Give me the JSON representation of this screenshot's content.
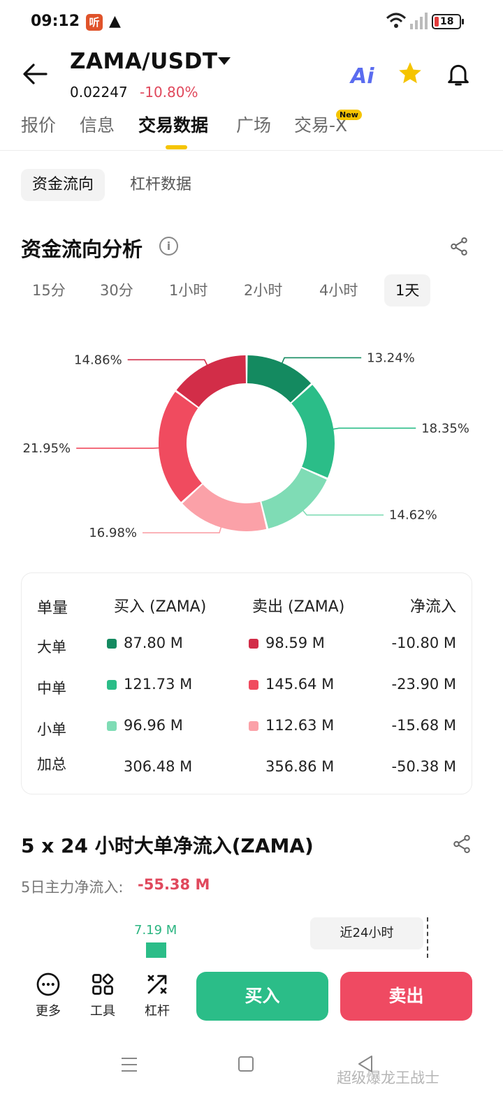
{
  "status_bar": {
    "time": "09:12",
    "battery": "18",
    "app_icon_text": "听"
  },
  "header": {
    "pair": "ZAMA/USDT",
    "price": "0.02247",
    "change": "-10.80%"
  },
  "tabs": [
    {
      "label": "报价"
    },
    {
      "label": "信息"
    },
    {
      "label": "交易数据"
    },
    {
      "label": "广场"
    },
    {
      "label": "交易-X"
    }
  ],
  "new_badge": "New",
  "subtabs": [
    {
      "label": "资金流向"
    },
    {
      "label": "杠杆数据"
    }
  ],
  "fund_flow": {
    "title": "资金流向分析",
    "periods": [
      "15分",
      "30分",
      "1小时",
      "2小时",
      "4小时",
      "1天"
    ]
  },
  "chart_data": {
    "type": "pie",
    "donut": true,
    "slices": [
      {
        "label": "13.24%",
        "value": 13.24,
        "color": "#148a60"
      },
      {
        "label": "18.35%",
        "value": 18.35,
        "color": "#2bbd88"
      },
      {
        "label": "14.62%",
        "value": 14.62,
        "color": "#7fdcb5"
      },
      {
        "label": "16.98%",
        "value": 16.98,
        "color": "#fba1a8"
      },
      {
        "label": "21.95%",
        "value": 21.95,
        "color": "#f04b5f"
      },
      {
        "label": "14.86%",
        "value": 14.86,
        "color": "#d22d48"
      }
    ]
  },
  "flow_table": {
    "headers": [
      "单量",
      "买入 (ZAMA)",
      "卖出 (ZAMA)",
      "净流入"
    ],
    "rows": [
      {
        "name": "大单",
        "buy": "87.80 M",
        "sell": "98.59 M",
        "net": "-10.80 M",
        "buy_color": "#148a60",
        "sell_color": "#d22d48"
      },
      {
        "name": "中单",
        "buy": "121.73 M",
        "sell": "145.64 M",
        "net": "-23.90 M",
        "buy_color": "#2bbd88",
        "sell_color": "#f04b5f"
      },
      {
        "name": "小单",
        "buy": "96.96 M",
        "sell": "112.63 M",
        "net": "-15.68 M",
        "buy_color": "#7fdcb5",
        "sell_color": "#fba1a8"
      },
      {
        "name": "加总",
        "buy": "306.48 M",
        "sell": "356.86 M",
        "net": "-50.38 M"
      }
    ]
  },
  "large_flow": {
    "title": "5 x 24 小时大单净流入(ZAMA)",
    "summary_label": "5日主力净流入:",
    "summary_value": "-55.38 M",
    "bar_value_label": "7.19 M",
    "tooltip": "近24小时"
  },
  "action_bar": {
    "more": "更多",
    "tools": "工具",
    "leverage": "杠杆",
    "buy": "买入",
    "sell": "卖出"
  },
  "watermark": "超级爆龙王战士"
}
